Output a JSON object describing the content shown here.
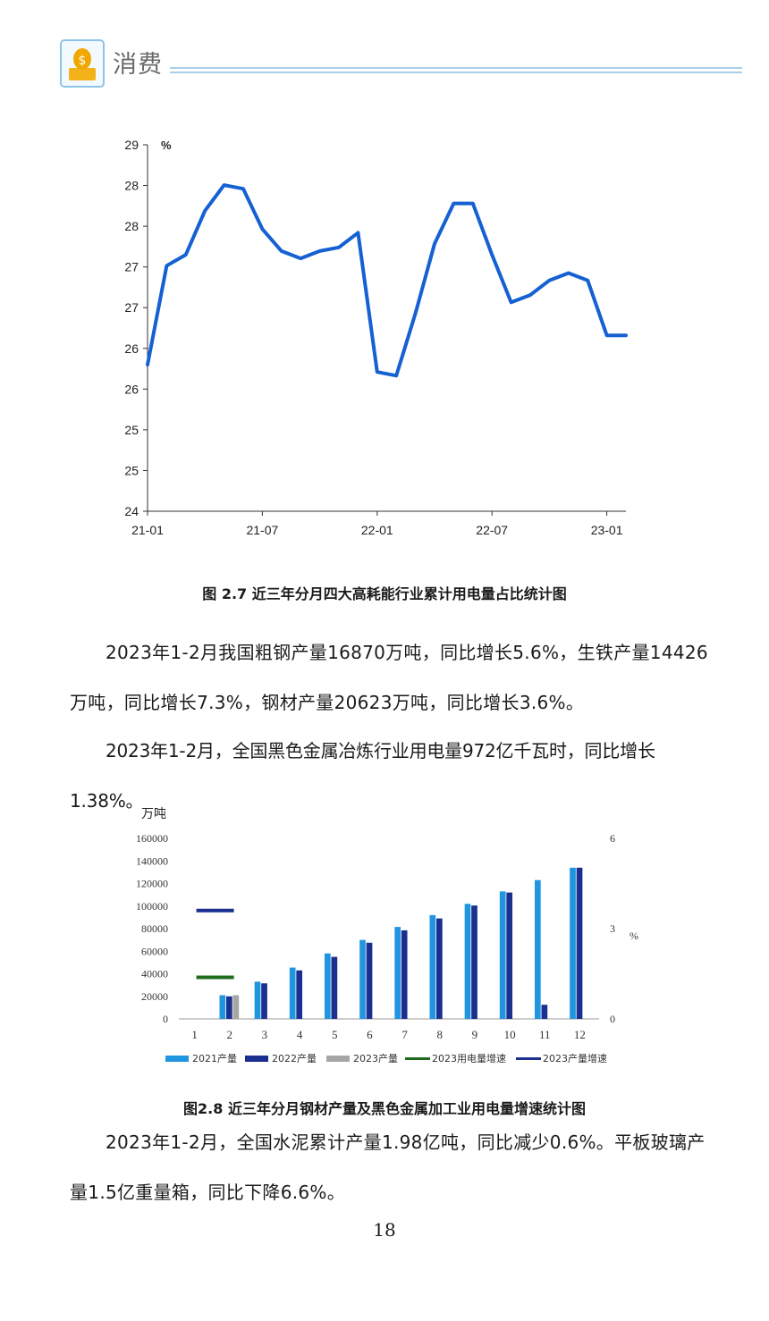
{
  "header": {
    "title": "消费"
  },
  "figure_1": {
    "caption": "图 2.7  近三年分月四大高耗能行业累计用电量占比统计图",
    "chart_data": {
      "type": "line",
      "ylabel": "%",
      "ytick_labels": [
        "24",
        "25",
        "25",
        "26",
        "26",
        "27",
        "27",
        "28",
        "28",
        "29"
      ],
      "xtick_labels": [
        "21-01",
        "21-07",
        "22-01",
        "22-07",
        "23-01"
      ],
      "series": [
        {
          "color": "#1560d2",
          "values": [
            26.0,
            27.35,
            27.5,
            28.1,
            28.45,
            28.4,
            27.85,
            27.55,
            27.45,
            27.55,
            27.6,
            27.8,
            25.9,
            25.85,
            26.7,
            27.65,
            28.2,
            28.2,
            27.5,
            26.85,
            26.95,
            27.15,
            27.25,
            27.15,
            26.4,
            26.4
          ]
        }
      ],
      "ylim": [
        24,
        29
      ],
      "grid": false
    }
  },
  "paragraph_1": "2023年1-2月我国粗钢产量16870万吨，同比增长5.6%，生铁产量14426万吨，同比增长7.3%，钢材产量20623万吨，同比增长3.6%。",
  "paragraph_2": "2023年1-2月，全国黑色金属冶炼行业用电量972亿千瓦时，同比增长1.38%。",
  "figure_2": {
    "caption": "图2.8  近三年分月钢材产量及黑色金属加工业用电量增速统计图",
    "chart_data": {
      "type": "bar",
      "ylabel_left": "万吨",
      "ylabel_right": "%",
      "categories": [
        "1",
        "2",
        "3",
        "4",
        "5",
        "6",
        "7",
        "8",
        "9",
        "10",
        "11",
        "12"
      ],
      "yticks_left": [
        "0",
        "20000",
        "40000",
        "60000",
        "80000",
        "100000",
        "120000",
        "140000",
        "160000"
      ],
      "yticks_right": [
        "0",
        "3",
        "6"
      ],
      "ylim_left": [
        0,
        160000
      ],
      "ylim_right": [
        0,
        6
      ],
      "series": [
        {
          "name": "2021产量",
          "color": "#2196e0",
          "values": [
            null,
            21000,
            33000,
            45500,
            58000,
            70000,
            81500,
            92000,
            102000,
            113000,
            123000,
            134000
          ]
        },
        {
          "name": "2022产量",
          "color": "#1a2f8f",
          "values": [
            null,
            20000,
            31500,
            43000,
            55000,
            67500,
            78500,
            89000,
            100500,
            112000,
            12500,
            134000
          ]
        },
        {
          "name": "2023产量",
          "color": "#a6a6a6",
          "values": [
            null,
            21000,
            null,
            null,
            null,
            null,
            null,
            null,
            null,
            null,
            null,
            null
          ]
        }
      ],
      "line_series": [
        {
          "name": "2023用电量增速",
          "color": "#1e6b1e",
          "value": 1.38
        },
        {
          "name": "2023产量增速",
          "color": "#1a2f8f",
          "value": 3.6
        }
      ]
    }
  },
  "paragraph_3": "2023年1-2月，全国水泥累计产量1.98亿吨，同比减少0.6%。平板玻璃产量1.5亿重量箱，同比下降6.6%。",
  "page_number": "18"
}
